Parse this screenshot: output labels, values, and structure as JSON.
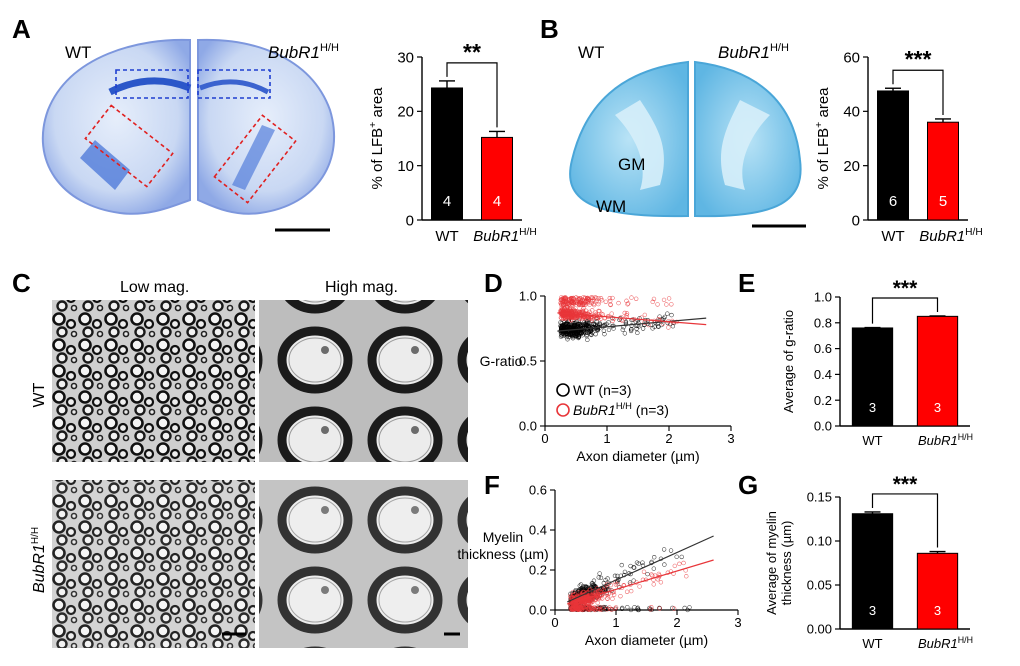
{
  "panels": {
    "A": {
      "letter": "A",
      "image_labels": {
        "wt": "WT",
        "mut": "BubR1",
        "mut_sup": "H/H"
      },
      "chart": {
        "type": "bar",
        "ylabel": "% of LFB",
        "ylabel_sup": "+",
        "ylabel_tail": " area",
        "ylim": [
          0,
          30
        ],
        "yticks": [
          0,
          10,
          20,
          30
        ],
        "categories": [
          "WT",
          "BubR1"
        ],
        "cat_sup": "H/H",
        "values": [
          24.3,
          15.2
        ],
        "errors": [
          1.3,
          1.1
        ],
        "n": [
          "4",
          "4"
        ],
        "colors": [
          "#000000",
          "#ff0000"
        ],
        "significance": "**"
      }
    },
    "B": {
      "letter": "B",
      "image_labels": {
        "wt": "WT",
        "mut": "BubR1",
        "mut_sup": "H/H",
        "gm": "GM",
        "wm": "WM"
      },
      "chart": {
        "type": "bar",
        "ylabel": "% of LFB",
        "ylabel_sup": "+",
        "ylabel_tail": " area",
        "ylim": [
          0,
          60
        ],
        "yticks": [
          0,
          20,
          40,
          60
        ],
        "categories": [
          "WT",
          "BubR1"
        ],
        "cat_sup": "H/H",
        "values": [
          47.5,
          36.0
        ],
        "errors": [
          1.0,
          1.2
        ],
        "n": [
          "6",
          "5"
        ],
        "colors": [
          "#000000",
          "#ff0000"
        ],
        "significance": "***"
      }
    },
    "C": {
      "letter": "C",
      "col_labels": [
        "Low mag.",
        "High mag."
      ],
      "row_labels": {
        "wt": "WT",
        "mut": "BubR1",
        "mut_sup": "H/H"
      }
    },
    "D": {
      "letter": "D",
      "chart": {
        "type": "scatter",
        "xlabel": "Axon diameter (µm)",
        "ylabel": "G-ratio",
        "xlim": [
          0,
          3
        ],
        "ylim": [
          0,
          1.0
        ],
        "xticks": [
          0,
          1,
          2,
          3
        ],
        "yticks": [
          "0.0",
          "0.5",
          "1.0"
        ],
        "series": [
          {
            "name": "WT (n=3)",
            "color": "#000000",
            "trend": [
              [
                0.2,
                0.73
              ],
              [
                2.6,
                0.83
              ]
            ]
          },
          {
            "name": "BubR1",
            "sup": "H/H",
            "tail": " (n=3)",
            "color": "#e8363a",
            "trend": [
              [
                0.2,
                0.87
              ],
              [
                2.6,
                0.78
              ]
            ]
          }
        ]
      }
    },
    "E": {
      "letter": "E",
      "chart": {
        "type": "bar",
        "ylabel": "Average of g-ratio",
        "ylim": [
          0,
          1.0
        ],
        "yticks": [
          "0.0",
          "0.2",
          "0.4",
          "0.6",
          "0.8",
          "1.0"
        ],
        "categories": [
          "WT",
          "BubR1"
        ],
        "cat_sup": "H/H",
        "values": [
          0.76,
          0.85
        ],
        "errors": [
          0.003,
          0.003
        ],
        "n": [
          "3",
          "3"
        ],
        "colors": [
          "#000000",
          "#ff0000"
        ],
        "significance": "***"
      }
    },
    "F": {
      "letter": "F",
      "chart": {
        "type": "scatter",
        "xlabel": "Axon diameter (µm)",
        "ylabel_line1": "Myelin",
        "ylabel_line2": "thickness (µm)",
        "xlim": [
          0,
          3
        ],
        "ylim": [
          0,
          0.6
        ],
        "xticks": [
          0,
          1,
          2,
          3
        ],
        "yticks": [
          "0.0",
          "0.2",
          "0.4",
          "0.6"
        ],
        "series": [
          {
            "name": "WT",
            "color": "#000000",
            "trend": [
              [
                0.2,
                0.04
              ],
              [
                2.6,
                0.37
              ]
            ]
          },
          {
            "name": "BubR1 H/H",
            "color": "#e8363a",
            "trend": [
              [
                0.2,
                0.03
              ],
              [
                2.6,
                0.25
              ]
            ]
          }
        ]
      }
    },
    "G": {
      "letter": "G",
      "chart": {
        "type": "bar",
        "ylabel_line1": "Average of myelin",
        "ylabel_line2": "thickness (µm)",
        "ylim": [
          0,
          0.15
        ],
        "yticks": [
          "0.00",
          "0.05",
          "0.10",
          "0.15"
        ],
        "categories": [
          "WT",
          "BubR1"
        ],
        "cat_sup": "H/H",
        "values": [
          0.131,
          0.086
        ],
        "errors": [
          0.002,
          0.002
        ],
        "n": [
          "3",
          "3"
        ],
        "colors": [
          "#000000",
          "#ff0000"
        ],
        "significance": "***"
      }
    }
  }
}
